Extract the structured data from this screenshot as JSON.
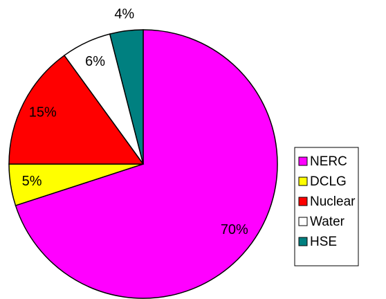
{
  "chart_data": {
    "type": "pie",
    "categories": [
      "NERC",
      "DCLG",
      "Nuclear",
      "Water",
      "HSE"
    ],
    "values": [
      70,
      5,
      15,
      6,
      4
    ],
    "value_labels": [
      "70%",
      "5%",
      "15%",
      "6%",
      "4%"
    ],
    "colors": [
      "#ff00ff",
      "#ffff00",
      "#ff0000",
      "#ffffff",
      "#008080"
    ],
    "legend": "right"
  }
}
